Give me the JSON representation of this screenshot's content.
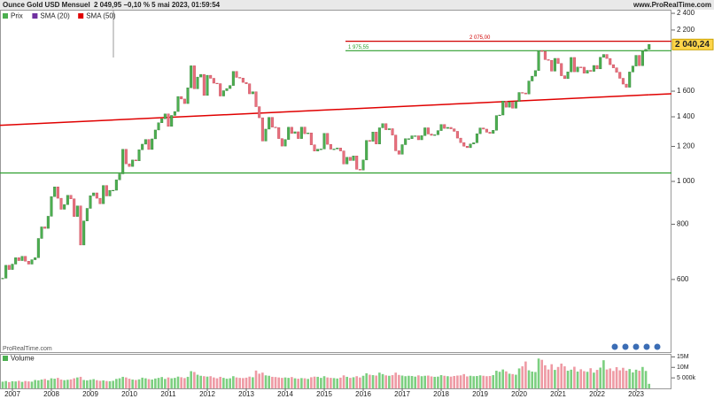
{
  "chart_data": {
    "type": "candlestick",
    "title": "Ounce Gold USD Mensuel",
    "subtitle": "2 049,95 −0,10 % 5 mai 2023, 01:59:54",
    "source": "www.ProRealTime.com",
    "watermark": "ProRealTime.com",
    "log_scale": true,
    "categories": [
      null,
      null,
      null,
      "2007",
      null,
      null,
      null,
      null,
      null,
      null,
      null,
      null,
      null,
      null,
      null,
      "2008",
      null,
      null,
      null,
      null,
      null,
      null,
      null,
      null,
      null,
      null,
      null,
      "2009",
      null,
      null,
      null,
      null,
      null,
      null,
      null,
      null,
      null,
      null,
      null,
      "2010",
      null,
      null,
      null,
      null,
      null,
      null,
      null,
      null,
      null,
      null,
      null,
      "2011",
      null,
      null,
      null,
      null,
      null,
      null,
      null,
      null,
      null,
      null,
      null,
      "2012",
      null,
      null,
      null,
      null,
      null,
      null,
      null,
      null,
      null,
      null,
      null,
      "2013",
      null,
      null,
      null,
      null,
      null,
      null,
      null,
      null,
      null,
      null,
      null,
      "2014",
      null,
      null,
      null,
      null,
      null,
      null,
      null,
      null,
      null,
      null,
      null,
      "2015",
      null,
      null,
      null,
      null,
      null,
      null,
      null,
      null,
      null,
      null,
      null,
      "2016",
      null,
      null,
      null,
      null,
      null,
      null,
      null,
      null,
      null,
      null,
      null,
      "2017",
      null,
      null,
      null,
      null,
      null,
      null,
      null,
      null,
      null,
      null,
      null,
      "2018",
      null,
      null,
      null,
      null,
      null,
      null,
      null,
      null,
      null,
      null,
      null,
      "2019",
      null,
      null,
      null,
      null,
      null,
      null,
      null,
      null,
      null,
      null,
      null,
      "2020",
      null,
      null,
      null,
      null,
      null,
      null,
      null,
      null,
      null,
      null,
      null,
      "2021",
      null,
      null,
      null,
      null,
      null,
      null,
      null,
      null,
      null,
      null,
      null,
      "2022",
      null,
      null,
      null,
      null,
      null,
      null,
      null,
      null,
      null,
      null,
      null,
      "2023",
      null,
      null,
      null,
      null
    ],
    "series": [
      {
        "name": "Prix",
        "color": "#4caf50",
        "down_color": "#e8707e",
        "values": [
          604,
          646,
          632,
          650,
          672,
          662,
          677,
          660,
          650,
          665,
          672,
          743,
          789,
          783,
          834,
          924,
          972,
          916,
          865,
          886,
          930,
          913,
          833,
          880,
          718,
          814,
          869,
          928,
          942,
          916,
          890,
          979,
          927,
          954,
          955,
          1008,
          1040,
          1182,
          1096,
          1081,
          1118,
          1113,
          1179,
          1214,
          1244,
          1181,
          1248,
          1307,
          1357,
          1386,
          1421,
          1332,
          1410,
          1439,
          1556,
          1536,
          1500,
          1628,
          1826,
          1620,
          1722,
          1746,
          1565,
          1738,
          1711,
          1668,
          1664,
          1560,
          1604,
          1622,
          1648,
          1773,
          1719,
          1713,
          1675,
          1663,
          1578,
          1595,
          1476,
          1393,
          1234,
          1313,
          1396,
          1327,
          1323,
          1250,
          1202,
          1244,
          1326,
          1284,
          1295,
          1250,
          1327,
          1282,
          1287,
          1210,
          1171,
          1183,
          1184,
          1284,
          1213,
          1183,
          1184,
          1190,
          1172,
          1095,
          1134,
          1115,
          1142,
          1065,
          1061,
          1118,
          1238,
          1232,
          1293,
          1215,
          1322,
          1351,
          1309,
          1316,
          1273,
          1173,
          1152,
          1211,
          1249,
          1249,
          1268,
          1268,
          1242,
          1269,
          1322,
          1280,
          1271,
          1275,
          1303,
          1345,
          1318,
          1325,
          1315,
          1298,
          1253,
          1224,
          1201,
          1192,
          1215,
          1223,
          1282,
          1321,
          1313,
          1292,
          1284,
          1305,
          1409,
          1413,
          1520,
          1472,
          1511,
          1464,
          1517,
          1589,
          1585,
          1577,
          1687,
          1730,
          1781,
          1975,
          1968,
          1886,
          1879,
          1776,
          1898,
          1848,
          1734,
          1708,
          1769,
          1907,
          1770,
          1814,
          1813,
          1757,
          1783,
          1774,
          1829,
          1797,
          1909,
          1937,
          1897,
          1837,
          1807,
          1766,
          1711,
          1660,
          1633,
          1768,
          1824,
          1928,
          1827,
          1969,
          1990,
          2041
        ]
      }
    ],
    "indicators": [
      {
        "name": "SMA (20)",
        "color": "#7030a0"
      },
      {
        "name": "SMA (50)",
        "color": "#e00000"
      }
    ],
    "ylim": [
      411,
      2434
    ],
    "yticks": [
      {
        "value": 600,
        "label": "600"
      },
      {
        "value": 800,
        "label": "800"
      },
      {
        "value": 1000,
        "label": "1 000"
      },
      {
        "value": 1200,
        "label": "1 200"
      },
      {
        "value": 1400,
        "label": "1 400"
      },
      {
        "value": 1600,
        "label": "1 600"
      },
      {
        "value": 2200,
        "label": "2 200"
      },
      {
        "value": 2400,
        "label": "2 400"
      }
    ],
    "last_price": {
      "value": 2040.24,
      "label": "2 040,24"
    },
    "levels": [
      {
        "value": 2075,
        "label": "2 075,00",
        "color": "#d00000"
      },
      {
        "value": 1975.55,
        "label": "1 975,55",
        "color": "#2e9e2e"
      },
      {
        "value": 1045,
        "color": "#2e9e2e"
      }
    ],
    "trendline": {
      "color": "#e00000",
      "x": [
        0,
        199
      ],
      "values": [
        1340,
        1570
      ]
    },
    "volume": {
      "title": "Volume",
      "ylim": [
        0,
        16
      ],
      "yticks": [
        {
          "value": 15,
          "label": "15M"
        },
        {
          "value": 10,
          "label": "10M"
        },
        {
          "value": 5,
          "label": "5 000k"
        }
      ],
      "values": [
        3.2,
        3.5,
        3.0,
        3.4,
        3.3,
        3.6,
        3.1,
        3.5,
        3.3,
        3.2,
        4.0,
        3.8,
        4.2,
        4.5,
        3.9,
        4.8,
        4.6,
        5.0,
        4.2,
        3.9,
        4.1,
        4.3,
        4.8,
        5.2,
        5.5,
        4.0,
        3.8,
        4.1,
        4.4,
        3.9,
        3.6,
        3.8,
        3.5,
        3.4,
        3.6,
        4.5,
        4.8,
        5.5,
        5.2,
        4.6,
        4.2,
        4.0,
        4.3,
        5.1,
        4.8,
        4.4,
        4.2,
        4.7,
        5.0,
        5.4,
        4.5,
        5.2,
        4.8,
        5.0,
        5.6,
        5.3,
        4.9,
        5.5,
        8.2,
        7.8,
        6.5,
        6.0,
        5.8,
        5.6,
        5.8,
        5.2,
        4.8,
        5.5,
        5.0,
        4.6,
        4.8,
        5.8,
        5.2,
        5.0,
        4.9,
        5.1,
        5.6,
        5.3,
        8.5,
        7.0,
        7.5,
        6.2,
        6.0,
        5.5,
        5.4,
        5.2,
        5.0,
        5.2,
        5.0,
        5.4,
        4.8,
        4.6,
        4.9,
        4.8,
        4.5,
        5.3,
        5.6,
        5.5,
        5.0,
        5.8,
        5.2,
        5.0,
        4.9,
        4.7,
        5.1,
        6.2,
        5.5,
        5.0,
        5.3,
        5.8,
        5.2,
        6.0,
        7.2,
        6.5,
        6.3,
        6.1,
        7.5,
        6.8,
        6.2,
        6.0,
        6.3,
        7.5,
        6.4,
        6.1,
        5.8,
        6.0,
        5.9,
        5.6,
        6.2,
        5.8,
        6.0,
        6.1,
        5.7,
        5.5,
        5.6,
        6.3,
        6.0,
        5.8,
        5.6,
        5.9,
        6.1,
        6.2,
        6.8,
        5.7,
        6.0,
        5.8,
        5.9,
        6.2,
        6.0,
        5.8,
        5.9,
        6.3,
        8.4,
        7.9,
        9.0,
        8.1,
        7.0,
        6.8,
        6.5,
        9.5,
        10.5,
        12.8,
        8.6,
        8.0,
        7.8,
        14.2,
        13.6,
        11.0,
        9.0,
        11.5,
        8.8,
        10.2,
        11.8,
        10.5,
        8.4,
        8.9,
        10.3,
        8.0,
        9.1,
        8.2,
        7.9,
        9.6,
        7.5,
        8.8,
        9.9,
        13.4,
        9.0,
        9.5,
        8.3,
        10.1,
        8.6,
        9.8,
        8.4,
        9.2,
        7.6,
        8.9,
        8.4,
        10.2,
        8.3,
        2.171
      ]
    }
  }
}
